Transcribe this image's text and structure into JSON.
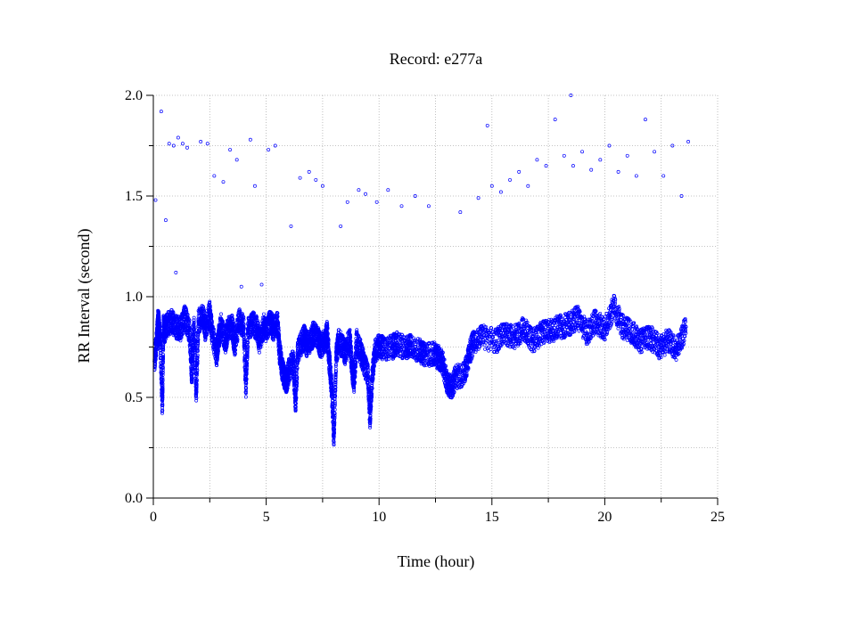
{
  "chart_data": {
    "type": "scatter",
    "title": "Record:  e277a",
    "xlabel": "Time (hour)",
    "ylabel": "RR Interval (second)",
    "xlim": [
      0,
      25
    ],
    "ylim": [
      0,
      2.0
    ],
    "x_ticks": [
      0,
      5,
      10,
      15,
      20,
      25
    ],
    "x_tick_labels": [
      "0",
      "5",
      "10",
      "15",
      "20",
      "25"
    ],
    "y_ticks": [
      0,
      0.5,
      1.0,
      1.5,
      2.0
    ],
    "y_tick_labels": [
      "0.0",
      "0.5",
      "1.0",
      "1.5",
      "2.0"
    ],
    "grid": true,
    "marker": "open-circle",
    "series": [
      {
        "color": "#0000ff",
        "points": [
          [
            0.05,
            0.68
          ],
          [
            0.1,
            1.48
          ],
          [
            0.15,
            0.78
          ],
          [
            0.2,
            0.88
          ],
          [
            0.25,
            0.86
          ],
          [
            0.3,
            0.79
          ],
          [
            0.35,
            1.92
          ],
          [
            0.4,
            0.46
          ],
          [
            0.45,
            0.85
          ],
          [
            0.5,
            0.83
          ],
          [
            0.55,
            1.38
          ],
          [
            0.6,
            0.86
          ],
          [
            0.7,
            1.76
          ],
          [
            0.8,
            0.88
          ],
          [
            0.9,
            1.75
          ],
          [
            1.0,
            0.85
          ],
          [
            1.0,
            1.12
          ],
          [
            1.1,
            1.79
          ],
          [
            1.2,
            0.84
          ],
          [
            1.3,
            1.76
          ],
          [
            1.4,
            0.9
          ],
          [
            1.5,
            1.74
          ],
          [
            1.6,
            0.83
          ],
          [
            1.7,
            0.62
          ],
          [
            1.8,
            0.85
          ],
          [
            1.9,
            0.52
          ],
          [
            2.0,
            0.88
          ],
          [
            2.1,
            1.77
          ],
          [
            2.2,
            0.9
          ],
          [
            2.3,
            0.84
          ],
          [
            2.4,
            1.76
          ],
          [
            2.5,
            0.92
          ],
          [
            2.6,
            0.83
          ],
          [
            2.7,
            1.6
          ],
          [
            2.8,
            0.71
          ],
          [
            2.9,
            0.8
          ],
          [
            3.0,
            0.86
          ],
          [
            3.1,
            1.57
          ],
          [
            3.2,
            0.78
          ],
          [
            3.3,
            0.84
          ],
          [
            3.4,
            1.73
          ],
          [
            3.5,
            0.85
          ],
          [
            3.6,
            0.76
          ],
          [
            3.7,
            1.68
          ],
          [
            3.8,
            0.88
          ],
          [
            3.9,
            1.05
          ],
          [
            4.0,
            0.85
          ],
          [
            4.1,
            0.55
          ],
          [
            4.2,
            0.84
          ],
          [
            4.3,
            1.78
          ],
          [
            4.4,
            0.87
          ],
          [
            4.5,
            1.55
          ],
          [
            4.6,
            0.84
          ],
          [
            4.7,
            0.78
          ],
          [
            4.8,
            1.06
          ],
          [
            4.9,
            0.86
          ],
          [
            5.0,
            0.83
          ],
          [
            5.1,
            1.73
          ],
          [
            5.2,
            0.88
          ],
          [
            5.3,
            0.84
          ],
          [
            5.4,
            1.75
          ],
          [
            5.5,
            0.87
          ],
          [
            5.6,
            0.72
          ],
          [
            5.7,
            0.65
          ],
          [
            5.8,
            0.6
          ],
          [
            5.9,
            0.58
          ],
          [
            6.0,
            0.63
          ],
          [
            6.1,
            1.35
          ],
          [
            6.2,
            0.68
          ],
          [
            6.3,
            0.47
          ],
          [
            6.4,
            0.73
          ],
          [
            6.5,
            1.59
          ],
          [
            6.6,
            0.78
          ],
          [
            6.7,
            0.8
          ],
          [
            6.8,
            0.76
          ],
          [
            6.9,
            1.62
          ],
          [
            7.0,
            0.79
          ],
          [
            7.1,
            0.82
          ],
          [
            7.2,
            1.58
          ],
          [
            7.3,
            0.8
          ],
          [
            7.4,
            0.75
          ],
          [
            7.5,
            1.55
          ],
          [
            7.6,
            0.78
          ],
          [
            7.7,
            0.82
          ],
          [
            7.8,
            0.68
          ],
          [
            7.9,
            0.55
          ],
          [
            8.0,
            0.3
          ],
          [
            8.1,
            0.7
          ],
          [
            8.2,
            0.78
          ],
          [
            8.3,
            1.35
          ],
          [
            8.4,
            0.75
          ],
          [
            8.5,
            0.72
          ],
          [
            8.6,
            1.47
          ],
          [
            8.7,
            0.79
          ],
          [
            8.8,
            0.65
          ],
          [
            8.9,
            0.58
          ],
          [
            9.0,
            0.78
          ],
          [
            9.1,
            1.53
          ],
          [
            9.2,
            0.72
          ],
          [
            9.3,
            0.68
          ],
          [
            9.4,
            1.51
          ],
          [
            9.5,
            0.62
          ],
          [
            9.6,
            0.4
          ],
          [
            9.7,
            0.6
          ],
          [
            9.8,
            0.72
          ],
          [
            9.9,
            1.47
          ],
          [
            10.0,
            0.76
          ],
          [
            10.2,
            0.74
          ],
          [
            10.4,
            1.53
          ],
          [
            10.6,
            0.75
          ],
          [
            10.8,
            0.77
          ],
          [
            11.0,
            1.45
          ],
          [
            11.2,
            0.74
          ],
          [
            11.4,
            0.76
          ],
          [
            11.6,
            1.5
          ],
          [
            11.8,
            0.73
          ],
          [
            12.0,
            0.71
          ],
          [
            12.2,
            1.45
          ],
          [
            12.4,
            0.72
          ],
          [
            12.6,
            0.7
          ],
          [
            12.8,
            0.68
          ],
          [
            13.0,
            0.58
          ],
          [
            13.2,
            0.55
          ],
          [
            13.4,
            0.6
          ],
          [
            13.6,
            1.42
          ],
          [
            13.8,
            0.62
          ],
          [
            14.0,
            0.72
          ],
          [
            14.2,
            0.78
          ],
          [
            14.4,
            1.49
          ],
          [
            14.6,
            0.8
          ],
          [
            14.8,
            1.85
          ],
          [
            15.0,
            1.55
          ],
          [
            15.2,
            0.78
          ],
          [
            15.4,
            1.52
          ],
          [
            15.6,
            0.82
          ],
          [
            15.8,
            1.58
          ],
          [
            16.0,
            0.8
          ],
          [
            16.2,
            1.62
          ],
          [
            16.4,
            0.84
          ],
          [
            16.6,
            1.55
          ],
          [
            16.8,
            0.78
          ],
          [
            17.0,
            1.68
          ],
          [
            17.2,
            0.82
          ],
          [
            17.4,
            1.65
          ],
          [
            17.6,
            0.83
          ],
          [
            17.8,
            1.88
          ],
          [
            18.0,
            0.85
          ],
          [
            18.2,
            1.7
          ],
          [
            18.4,
            0.86
          ],
          [
            18.5,
            2.0
          ],
          [
            18.6,
            1.65
          ],
          [
            18.8,
            0.9
          ],
          [
            19.0,
            1.72
          ],
          [
            19.2,
            0.82
          ],
          [
            19.4,
            1.63
          ],
          [
            19.6,
            0.88
          ],
          [
            19.8,
            1.68
          ],
          [
            20.0,
            0.84
          ],
          [
            20.2,
            1.75
          ],
          [
            20.4,
            0.95
          ],
          [
            20.6,
            1.62
          ],
          [
            20.8,
            0.85
          ],
          [
            21.0,
            1.7
          ],
          [
            21.2,
            0.82
          ],
          [
            21.4,
            1.6
          ],
          [
            21.6,
            0.78
          ],
          [
            21.8,
            1.88
          ],
          [
            22.0,
            0.8
          ],
          [
            22.2,
            1.72
          ],
          [
            22.4,
            0.75
          ],
          [
            22.6,
            1.6
          ],
          [
            22.8,
            0.78
          ],
          [
            23.0,
            1.75
          ],
          [
            23.2,
            0.74
          ],
          [
            23.4,
            1.5
          ],
          [
            23.6,
            0.85
          ],
          [
            23.7,
            1.77
          ]
        ]
      }
    ]
  }
}
